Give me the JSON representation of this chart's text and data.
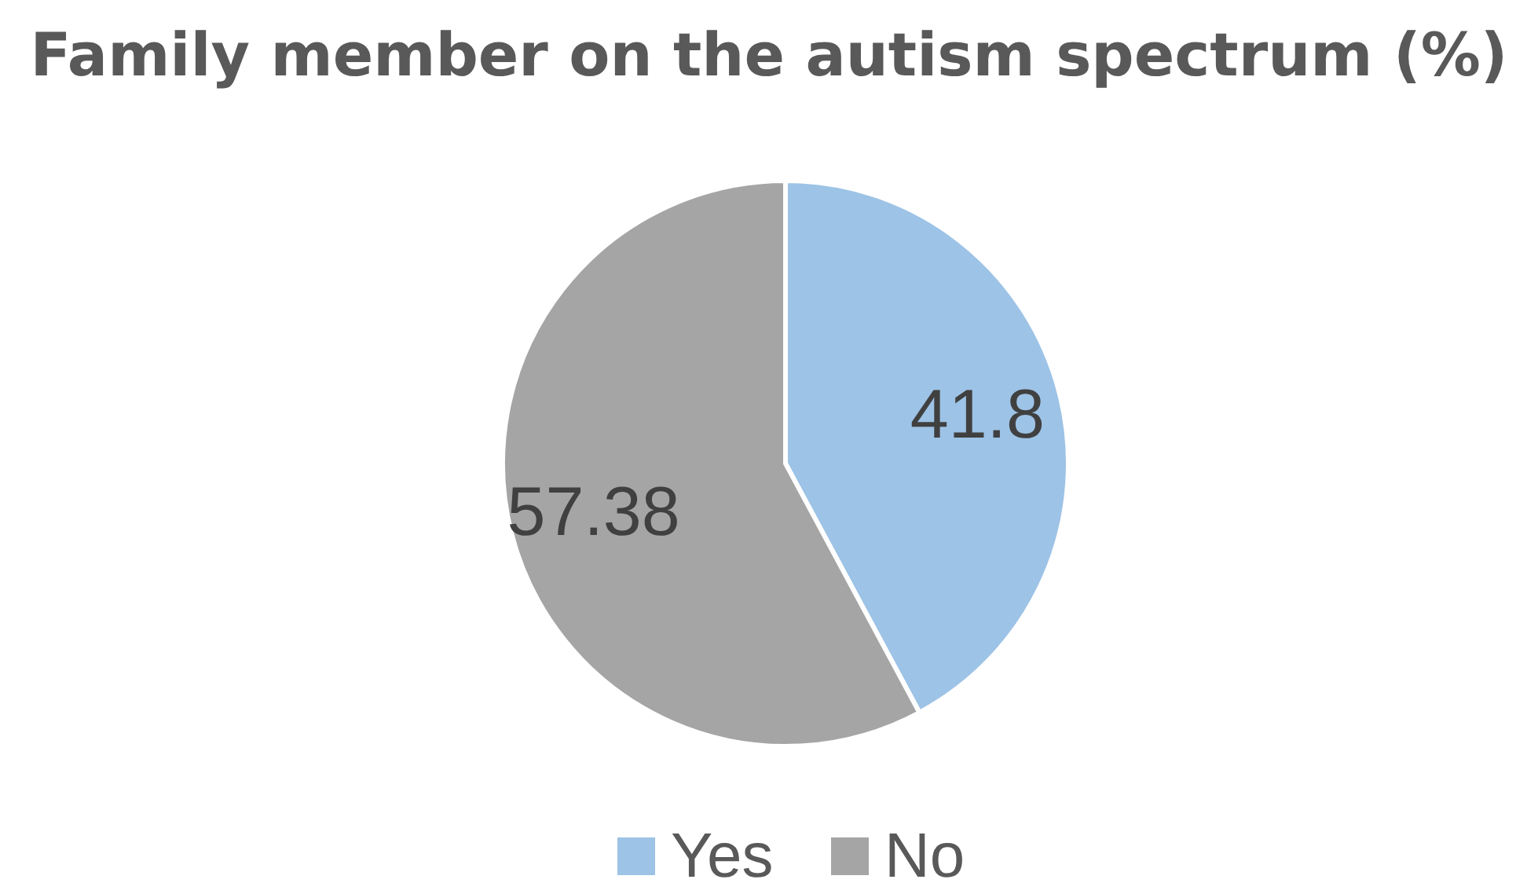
{
  "chart_data": {
    "type": "pie",
    "title": "Family member on the autism spectrum (%)",
    "categories": [
      "Yes",
      "No"
    ],
    "values": [
      41.8,
      57.38
    ],
    "colors": [
      "#9dc3e6",
      "#a5a5a5"
    ],
    "data_labels": true,
    "legend": "bottom"
  }
}
